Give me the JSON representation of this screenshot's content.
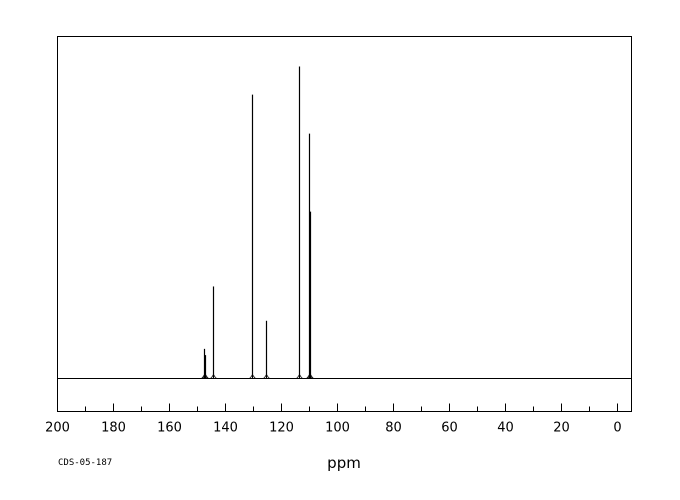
{
  "chart_data": {
    "type": "line",
    "title": "",
    "xlabel": "ppm",
    "ylabel": "",
    "xlim": [
      200,
      -5
    ],
    "x_reversed": true,
    "x_ticks": [
      "200",
      "180",
      "160",
      "140",
      "120",
      "100",
      "80",
      "60",
      "40",
      "20",
      "0"
    ],
    "grid": false,
    "legend": "none",
    "baseline": 0,
    "peaks": [
      {
        "ppm": 147.8,
        "height": 0.095
      },
      {
        "ppm": 147.3,
        "height": 0.075
      },
      {
        "ppm": 144.3,
        "height": 0.295
      },
      {
        "ppm": 130.4,
        "height": 0.91
      },
      {
        "ppm": 125.7,
        "height": 0.185
      },
      {
        "ppm": 113.6,
        "height": 1.0
      },
      {
        "ppm": 110.3,
        "height": 0.785
      },
      {
        "ppm": 109.9,
        "height": 0.535
      }
    ],
    "color": "#000000"
  },
  "footer": {
    "code": "CDS-05-187"
  }
}
